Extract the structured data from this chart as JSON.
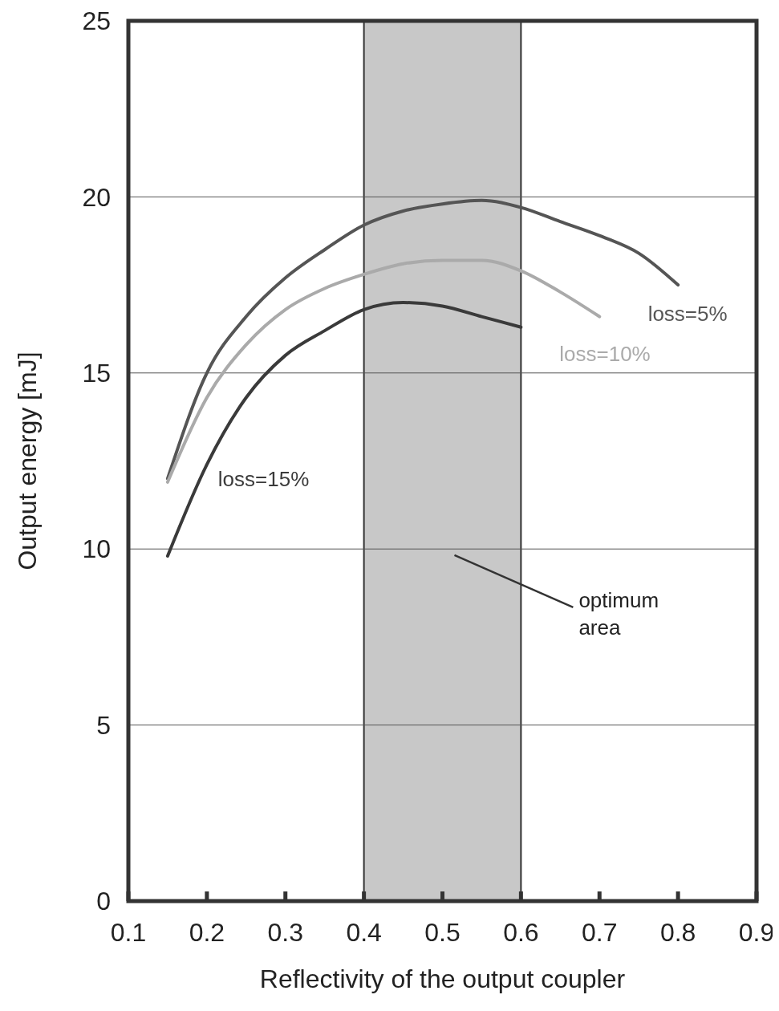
{
  "chart_data": {
    "type": "line",
    "xlabel": "Reflectivity of the output coupler",
    "ylabel": "Output energy [mJ]",
    "xlim": [
      0.1,
      0.9
    ],
    "xticks": [
      {
        "value": 0.1,
        "label": "0.1"
      },
      {
        "value": 0.2,
        "label": "0.2"
      },
      {
        "value": 0.3,
        "label": "0.3"
      },
      {
        "value": 0.4,
        "label": "0.4"
      },
      {
        "value": 0.5,
        "label": "0.5"
      },
      {
        "value": 0.6,
        "label": "0.6"
      },
      {
        "value": 0.7,
        "label": "0.7"
      },
      {
        "value": 0.8,
        "label": "0.8"
      },
      {
        "value": 0.9,
        "label": "0.9"
      }
    ],
    "ylim": [
      0,
      25
    ],
    "yticks": [
      0,
      5,
      10,
      15,
      20,
      25
    ],
    "grid": "y",
    "bands": [
      {
        "axis": "x",
        "from": 0.4,
        "to": 0.6,
        "label": "optimum area",
        "color": "#c8c8c8"
      }
    ],
    "series": [
      {
        "name": "loss=5%",
        "color": "#555555",
        "x": [
          0.15,
          0.2,
          0.25,
          0.3,
          0.35,
          0.4,
          0.45,
          0.5,
          0.55,
          0.6,
          0.65,
          0.7,
          0.75,
          0.8
        ],
        "values": [
          12.0,
          15.0,
          16.6,
          17.7,
          18.5,
          19.2,
          19.6,
          19.8,
          19.9,
          19.7,
          19.3,
          18.9,
          18.4,
          17.5
        ]
      },
      {
        "name": "loss=10%",
        "color": "#aaaaaa",
        "x": [
          0.15,
          0.2,
          0.25,
          0.3,
          0.35,
          0.4,
          0.45,
          0.5,
          0.55,
          0.6,
          0.65,
          0.7
        ],
        "values": [
          11.9,
          14.3,
          15.8,
          16.8,
          17.4,
          17.8,
          18.1,
          18.2,
          18.2,
          17.9,
          17.3,
          16.6
        ]
      },
      {
        "name": "loss=15%",
        "color": "#3a3a3a",
        "x": [
          0.15,
          0.2,
          0.25,
          0.3,
          0.35,
          0.4,
          0.45,
          0.5,
          0.55,
          0.6
        ],
        "values": [
          9.8,
          12.4,
          14.3,
          15.5,
          16.2,
          16.8,
          17.0,
          16.9,
          16.6,
          16.3
        ]
      }
    ]
  }
}
